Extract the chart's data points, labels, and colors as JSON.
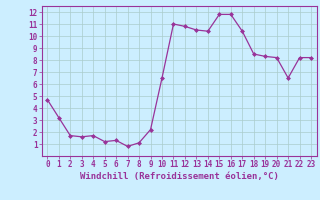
{
  "x": [
    0,
    1,
    2,
    3,
    4,
    5,
    6,
    7,
    8,
    9,
    10,
    11,
    12,
    13,
    14,
    15,
    16,
    17,
    18,
    19,
    20,
    21,
    22,
    23
  ],
  "y": [
    4.7,
    3.2,
    1.7,
    1.6,
    1.7,
    1.2,
    1.3,
    0.8,
    1.1,
    2.2,
    6.5,
    11.0,
    10.8,
    10.5,
    10.4,
    11.8,
    11.8,
    10.4,
    8.5,
    8.3,
    8.2,
    6.5,
    8.2,
    8.2
  ],
  "line_color": "#993399",
  "marker": "D",
  "marker_size": 2.0,
  "bg_color": "#cceeff",
  "grid_color": "#aacccc",
  "xlabel": "Windchill (Refroidissement éolien,°C)",
  "xlim": [
    -0.5,
    23.5
  ],
  "ylim": [
    0,
    12.5
  ],
  "xticks": [
    0,
    1,
    2,
    3,
    4,
    5,
    6,
    7,
    8,
    9,
    10,
    11,
    12,
    13,
    14,
    15,
    16,
    17,
    18,
    19,
    20,
    21,
    22,
    23
  ],
  "yticks": [
    1,
    2,
    3,
    4,
    5,
    6,
    7,
    8,
    9,
    10,
    11,
    12
  ],
  "tick_color": "#993399",
  "label_color": "#993399",
  "axis_color": "#993399",
  "tick_fontsize": 5.5,
  "xlabel_fontsize": 6.5
}
